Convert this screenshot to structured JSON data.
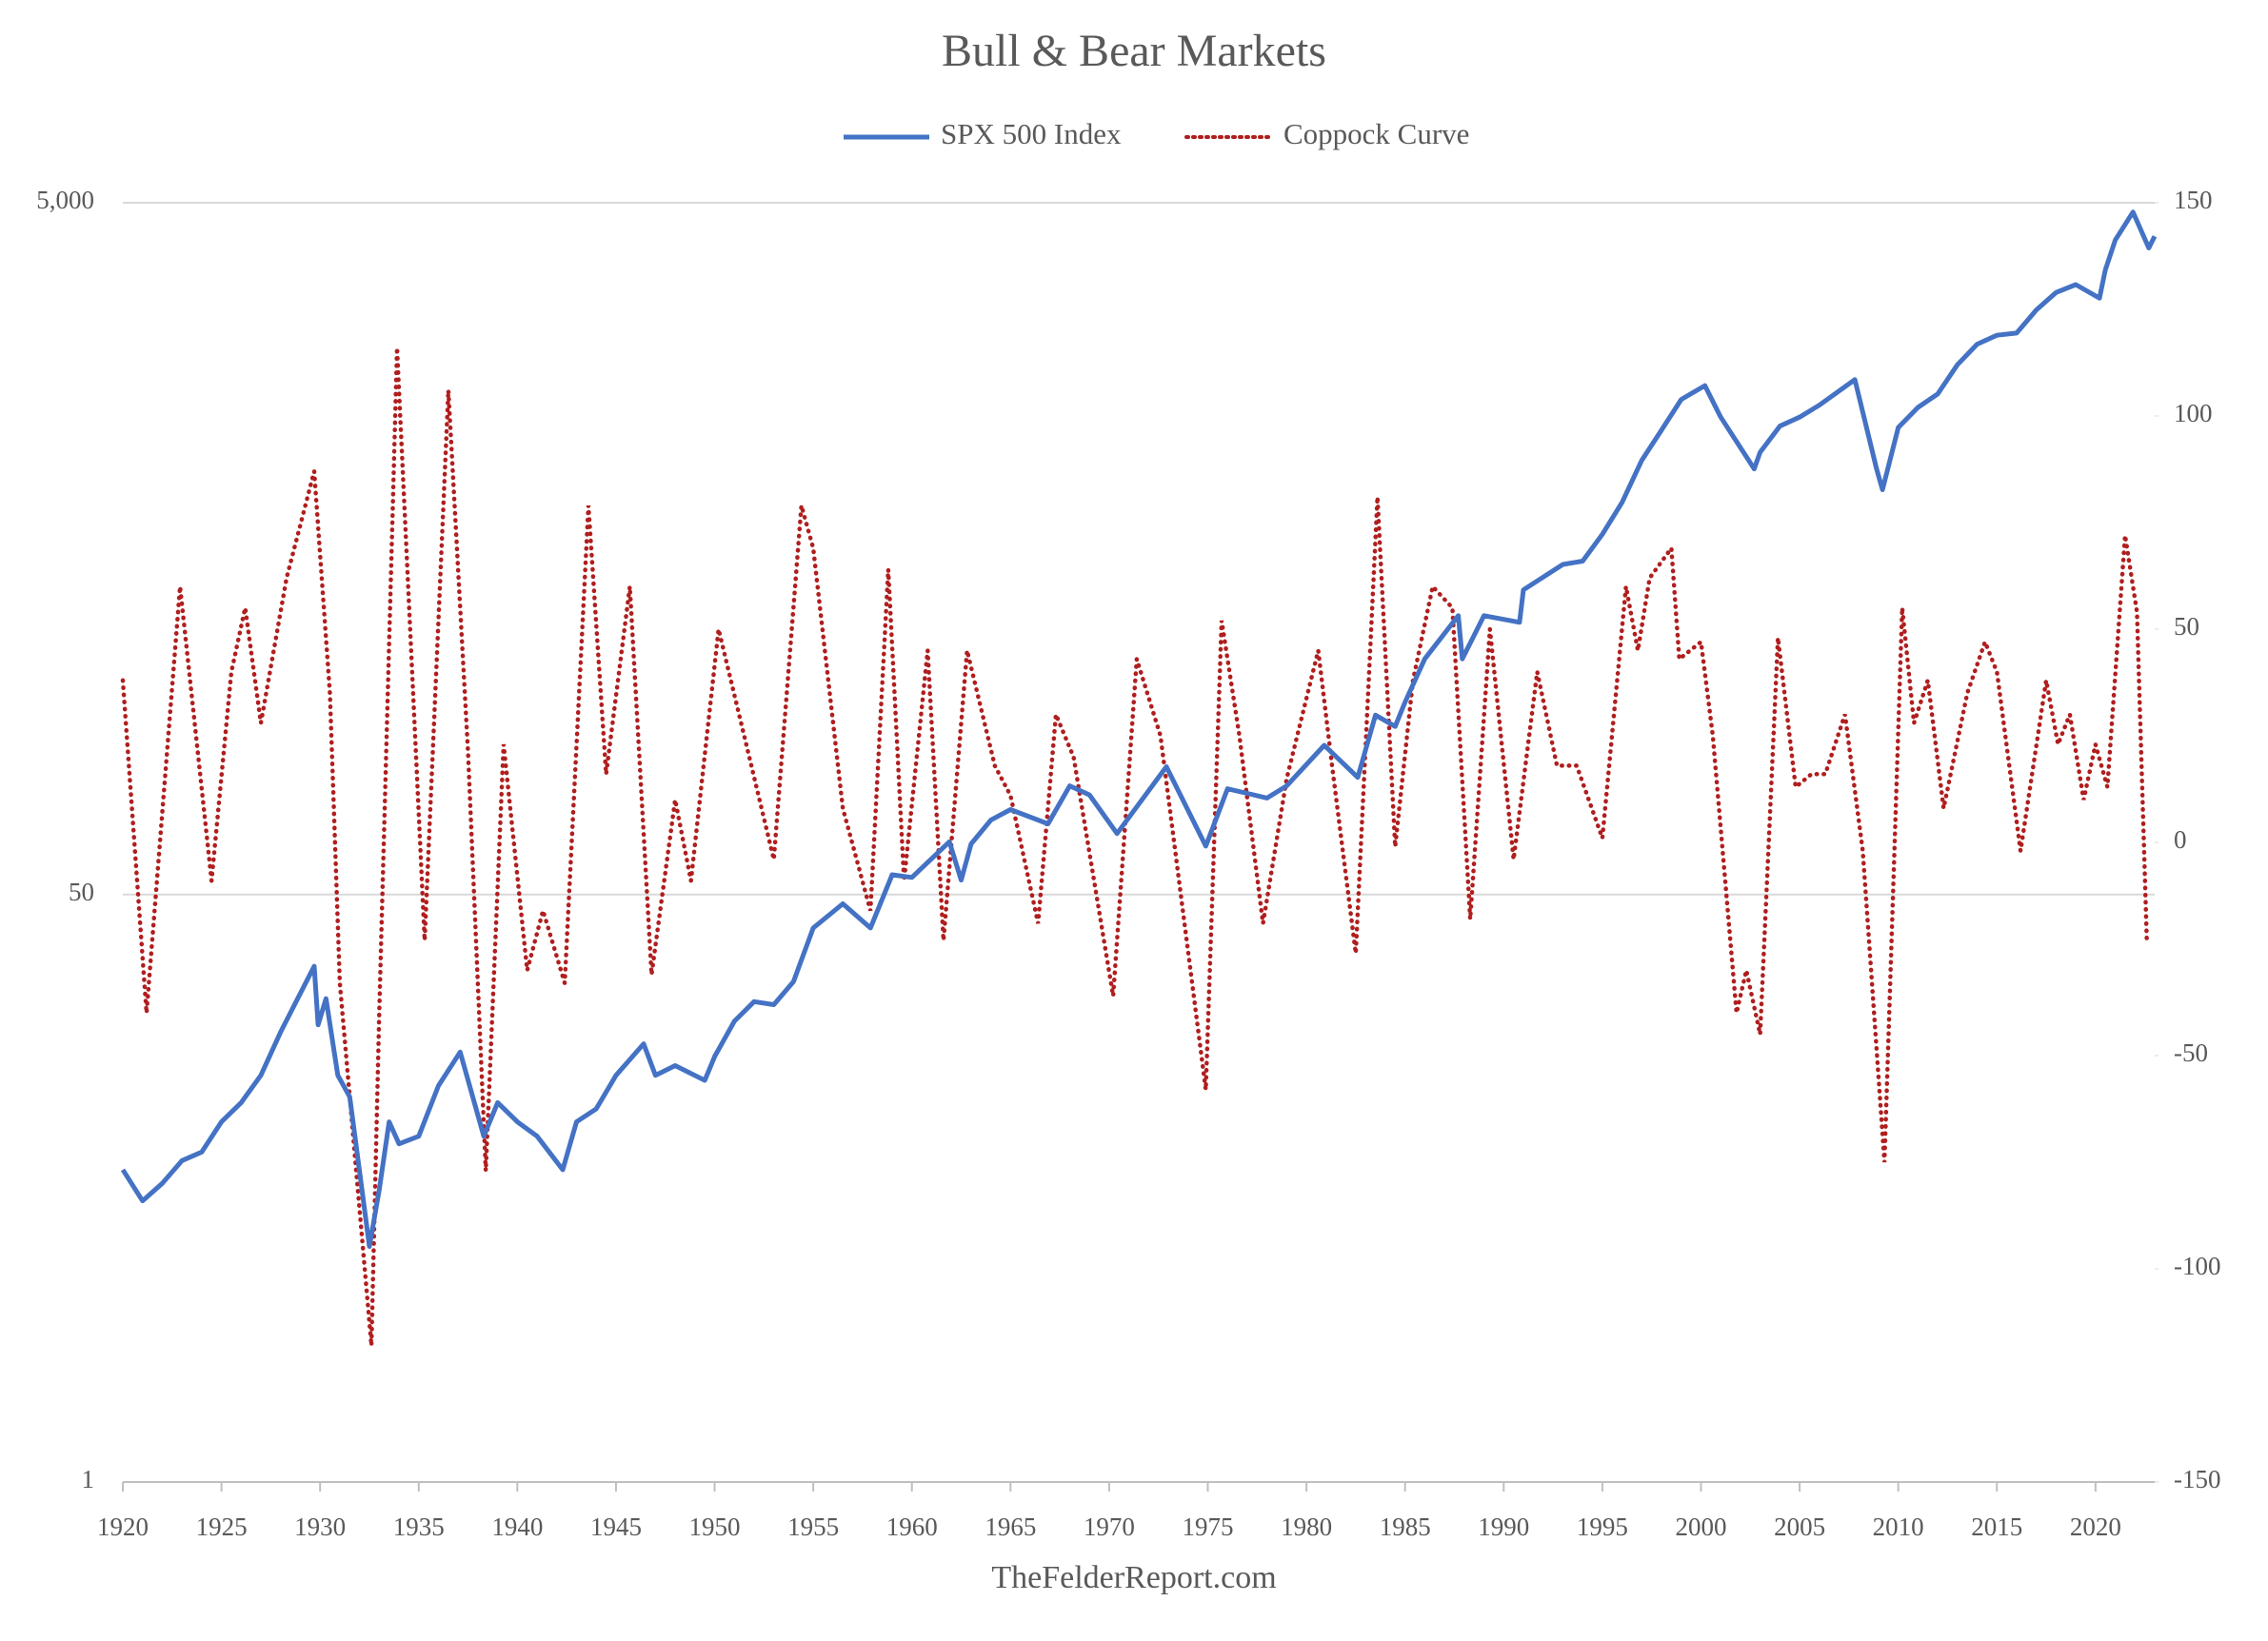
{
  "chart_data": {
    "type": "line",
    "title": "Bull & Bear Markets",
    "source": "TheFelderReport.com",
    "legend": "top",
    "grid": true,
    "xlim": [
      1920,
      2023
    ],
    "xticks": [
      1920,
      1925,
      1930,
      1935,
      1940,
      1945,
      1950,
      1955,
      1960,
      1965,
      1970,
      1975,
      1980,
      1985,
      1990,
      1995,
      2000,
      2005,
      2010,
      2015,
      2020
    ],
    "ylim": [
      1,
      5000
    ],
    "y_log": true,
    "yticks": [
      1,
      50,
      {
        "value": 5000,
        "label": "5,000"
      }
    ],
    "y2lim": [
      -150,
      150
    ],
    "y2ticks": [
      -150,
      -100,
      -50,
      0,
      50,
      100,
      150
    ],
    "series": [
      {
        "name": "SPX 500 Index",
        "color": "#4472c4",
        "line_style": "solid",
        "x": [
          1920,
          1921,
          1922,
          1923,
          1924,
          1925,
          1926,
          1927,
          1928,
          1929.7,
          1929.9,
          1930.3,
          1930.9,
          1931.5,
          1932.5,
          1933,
          1933.5,
          1934,
          1935,
          1936,
          1937.1,
          1938.3,
          1939,
          1940,
          1941,
          1942.3,
          1943,
          1944,
          1945,
          1946.4,
          1947,
          1948,
          1949.5,
          1950,
          1951,
          1952,
          1953,
          1954,
          1955,
          1956.5,
          1957.9,
          1959,
          1960,
          1961.9,
          1962.5,
          1963,
          1964,
          1965,
          1966.9,
          1968,
          1969,
          1970.4,
          1972.9,
          1974.9,
          1976,
          1977,
          1978,
          1979,
          1980.9,
          1982.6,
          1983.5,
          1984.5,
          1985,
          1986,
          1987.7,
          1987.9,
          1989,
          1990.8,
          1991,
          1993,
          1994,
          1995,
          1996,
          1997,
          1998,
          1999,
          2000.2,
          2001,
          2002.7,
          2003,
          2004,
          2005,
          2006,
          2007.8,
          2008.9,
          2009.2,
          2010,
          2011,
          2012,
          2013,
          2014,
          2015,
          2016,
          2017,
          2018,
          2019,
          2020.2,
          2020.5,
          2021,
          2021.9,
          2022.7,
          2023
        ],
        "values": [
          8,
          6.5,
          7.3,
          8.5,
          9,
          11,
          12.5,
          15,
          20,
          31,
          21,
          25,
          15,
          13,
          4.8,
          7,
          11,
          9.5,
          10,
          14,
          17.5,
          10,
          12.5,
          11,
          10,
          8,
          11,
          12,
          15,
          18.5,
          15,
          16,
          14.5,
          17,
          21.5,
          24.5,
          24,
          28,
          40,
          47,
          40,
          57,
          56,
          71,
          55,
          70,
          82,
          88,
          80,
          103,
          97,
          75,
          117,
          69,
          101,
          98,
          95,
          103,
          135,
          109,
          165,
          153,
          180,
          240,
          320,
          240,
          320,
          306,
          380,
          450,
          460,
          550,
          680,
          900,
          1100,
          1350,
          1480,
          1200,
          850,
          950,
          1130,
          1200,
          1300,
          1540,
          850,
          740,
          1120,
          1280,
          1400,
          1700,
          1950,
          2070,
          2100,
          2450,
          2750,
          2900,
          2650,
          3200,
          3900,
          4700,
          3700,
          4000
        ]
      },
      {
        "name": "Coppock Curve",
        "color": "#b01e1e",
        "line_style": "dotted",
        "axis": "y2",
        "x": [
          1920,
          1921.2,
          1922.9,
          1924.5,
          1925.5,
          1926.2,
          1927,
          1928.3,
          1929.7,
          1930.5,
          1931,
          1932.6,
          1933,
          1933.9,
          1935.3,
          1936.5,
          1937.5,
          1938.4,
          1939.3,
          1940.5,
          1941.3,
          1942.4,
          1943.6,
          1944.5,
          1945.7,
          1946.8,
          1948,
          1948.8,
          1950.2,
          1951.5,
          1953,
          1954.4,
          1955,
          1956.5,
          1957.9,
          1958.8,
          1959.6,
          1960.8,
          1961.6,
          1962.8,
          1964.2,
          1965,
          1966.4,
          1967.3,
          1968.2,
          1970.2,
          1971.4,
          1972.6,
          1974.9,
          1975.7,
          1976.6,
          1977.8,
          1979,
          1980.6,
          1981.3,
          1982.5,
          1983.6,
          1984.5,
          1985.4,
          1986.4,
          1987.4,
          1988.3,
          1989.3,
          1990.5,
          1991.7,
          1992.7,
          1993.7,
          1995,
          1996.2,
          1996.8,
          1997.4,
          1998.5,
          1998.9,
          2000,
          2000.6,
          2001.8,
          2002.3,
          2003,
          2003.9,
          2004.8,
          2005.6,
          2006.3,
          2007.3,
          2008.2,
          2009.3,
          2010.2,
          2010.8,
          2011.5,
          2012.3,
          2013.5,
          2014.4,
          2015,
          2016.2,
          2017.5,
          2018.1,
          2018.7,
          2019.4,
          2020,
          2020.6,
          2021.5,
          2022.1,
          2022.6
        ],
        "values": [
          38,
          -40,
          60,
          -9,
          40,
          55,
          28,
          62,
          87,
          35,
          -33,
          -118,
          -40,
          116,
          -23,
          106,
          21,
          -77,
          23,
          -30,
          -16,
          -33,
          79,
          16,
          60,
          -31,
          10,
          -9,
          50,
          25,
          -4,
          79,
          69,
          8,
          -16,
          64,
          -9,
          45,
          -23,
          45,
          18,
          11,
          -19,
          30,
          20,
          -36,
          43,
          25,
          -58,
          52,
          25,
          -19,
          15,
          45,
          18,
          -26,
          81,
          -1,
          38,
          60,
          55,
          -18,
          50,
          -4,
          40,
          18,
          18,
          1,
          60,
          45,
          62,
          69,
          43,
          47,
          25,
          -40,
          -30,
          -45,
          48,
          13,
          16,
          16,
          30,
          -2,
          -75,
          55,
          28,
          38,
          8,
          35,
          47,
          40,
          -2,
          38,
          23,
          30,
          10,
          23,
          13,
          72,
          54,
          -23
        ]
      }
    ]
  }
}
